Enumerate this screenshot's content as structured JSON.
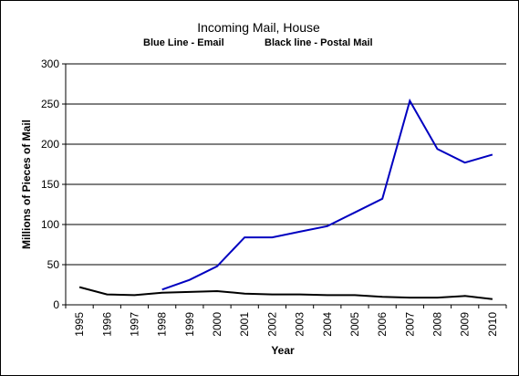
{
  "chart_data": {
    "type": "line",
    "title": "Incoming Mail, House",
    "subtitle_left": "Blue Line - Email",
    "subtitle_right": "Black line - Postal Mail",
    "xlabel": "Year",
    "ylabel": "Millions of Pieces of Mail",
    "ylim": [
      0,
      300
    ],
    "yticks": [
      0,
      50,
      100,
      150,
      200,
      250,
      300
    ],
    "categories": [
      "1995",
      "1996",
      "1997",
      "1998",
      "1999",
      "2000",
      "2001",
      "2002",
      "2003",
      "2004",
      "2005",
      "2006",
      "2007",
      "2008",
      "2009",
      "2010"
    ],
    "grid": "horizontal",
    "series": [
      {
        "label": "Email",
        "color": "#0000c0",
        "values": [
          null,
          null,
          null,
          19,
          31,
          48,
          84,
          84,
          91,
          98,
          115,
          132,
          254,
          194,
          177,
          187
        ]
      },
      {
        "label": "Postal Mail",
        "color": "#000000",
        "values": [
          22,
          13,
          12,
          15,
          16,
          17,
          14,
          13,
          13,
          12,
          12,
          10,
          9,
          9,
          11,
          7
        ]
      }
    ]
  }
}
